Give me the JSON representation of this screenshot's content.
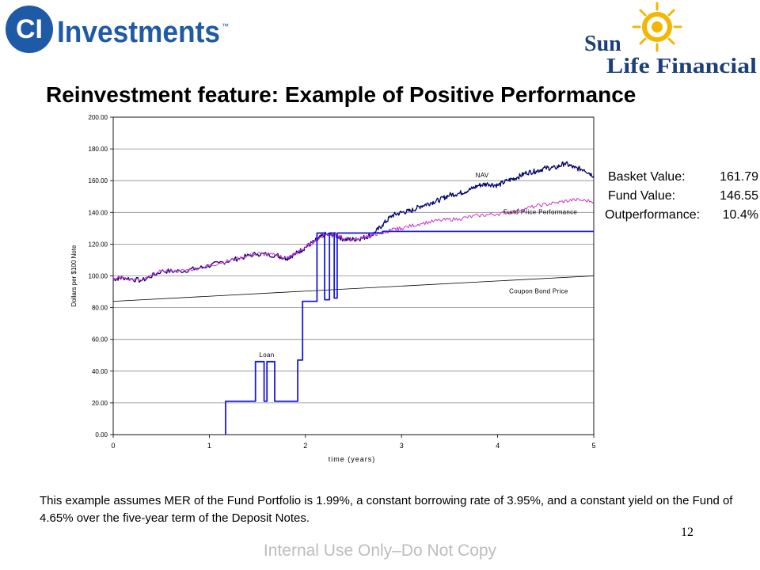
{
  "header": {
    "left_logo": {
      "symbol": "CI",
      "text": "Investments",
      "tm": "™",
      "color": "#1f5aa6"
    },
    "right_logo": {
      "line1": "Sun",
      "line2": "Life Financial",
      "text_color": "#1c3f7a",
      "sun_color": "#f2b705"
    }
  },
  "title": "Reinvestment feature: Example of Positive Performance",
  "summary": {
    "basket_label": "Basket Value:",
    "basket_value": "161.79",
    "fund_label": "Fund Value:",
    "fund_value": "146.55",
    "outperf_label": "Outperformance:",
    "outperf_value": "10.4%"
  },
  "footnote": "This example assumes MER of the Fund Portfolio is 1.99%, a constant borrowing rate of 3.95%, and a constant yield on the Fund of 4.65% over the five-year term of the Deposit Notes.",
  "page_number": "12",
  "watermark": "Internal Use Only–Do Not Copy",
  "chart_data": {
    "type": "line",
    "xlabel": "time (years)",
    "ylabel": "Dollars per $100 Note",
    "xlim": [
      0,
      5
    ],
    "ylim": [
      0,
      200
    ],
    "x_ticks": [
      0,
      1,
      2,
      3,
      4,
      5
    ],
    "y_ticks": [
      "0.00",
      "20.00",
      "40.00",
      "60.00",
      "80.00",
      "100.00",
      "120.00",
      "140.00",
      "160.00",
      "180.00",
      "200.00"
    ],
    "grid": "horizontal",
    "series": [
      {
        "name": "NAV",
        "color": "#00006e",
        "x": [
          0,
          0.1,
          0.3,
          0.5,
          0.7,
          0.9,
          1.1,
          1.3,
          1.5,
          1.7,
          1.8,
          1.9,
          2.0,
          2.1,
          2.2,
          2.3,
          2.4,
          2.5,
          2.6,
          2.7,
          2.8,
          2.9,
          3.0,
          3.1,
          3.2,
          3.3,
          3.4,
          3.5,
          3.6,
          3.7,
          3.8,
          3.9,
          4.0,
          4.1,
          4.2,
          4.3,
          4.4,
          4.5,
          4.6,
          4.7,
          4.8,
          4.9,
          5.0
        ],
        "values": [
          98,
          99,
          97,
          103,
          103,
          105,
          108,
          111,
          114,
          113,
          111,
          114,
          118,
          122,
          126,
          126,
          123,
          123,
          124,
          126,
          132,
          138,
          140,
          141,
          144,
          146,
          148,
          151,
          152,
          154,
          157,
          158,
          157,
          160,
          162,
          165,
          166,
          168,
          168,
          171,
          168,
          167,
          163
        ]
      },
      {
        "name": "Fund Price Performance",
        "color": "#cc33cc",
        "x": [
          0,
          0.1,
          0.3,
          0.5,
          0.7,
          0.9,
          1.1,
          1.3,
          1.5,
          1.7,
          1.8,
          1.9,
          2.0,
          2.1,
          2.2,
          2.3,
          2.4,
          2.5,
          2.6,
          2.7,
          2.8,
          2.9,
          3.0,
          3.2,
          3.4,
          3.6,
          3.8,
          4.0,
          4.2,
          4.4,
          4.6,
          4.8,
          5.0
        ],
        "values": [
          98,
          99,
          97,
          103,
          103,
          105,
          108,
          111,
          114,
          113,
          111,
          114,
          118,
          122,
          126,
          126,
          123,
          123,
          124,
          126,
          127,
          129,
          130,
          133,
          135,
          136,
          138,
          139,
          141,
          144,
          146,
          148,
          147
        ]
      },
      {
        "name": "Coupon Bond Price",
        "color": "#000000",
        "x": [
          0,
          5
        ],
        "values": [
          84,
          100
        ]
      },
      {
        "name": "Loan",
        "color": "#1a1ad6",
        "x": [
          0,
          1.17,
          1.17,
          1.48,
          1.48,
          1.57,
          1.57,
          1.6,
          1.6,
          1.68,
          1.68,
          1.92,
          1.92,
          1.97,
          1.97,
          2.12,
          2.12,
          2.2,
          2.2,
          2.25,
          2.25,
          2.3,
          2.3,
          2.33,
          2.33,
          2.8,
          2.8,
          5.0
        ],
        "values": [
          null,
          0,
          21,
          21,
          46,
          46,
          21,
          21,
          46,
          46,
          21,
          21,
          47,
          47,
          84,
          84,
          127,
          127,
          85,
          85,
          127,
          127,
          86,
          86,
          127,
          127,
          128,
          128
        ]
      }
    ]
  }
}
